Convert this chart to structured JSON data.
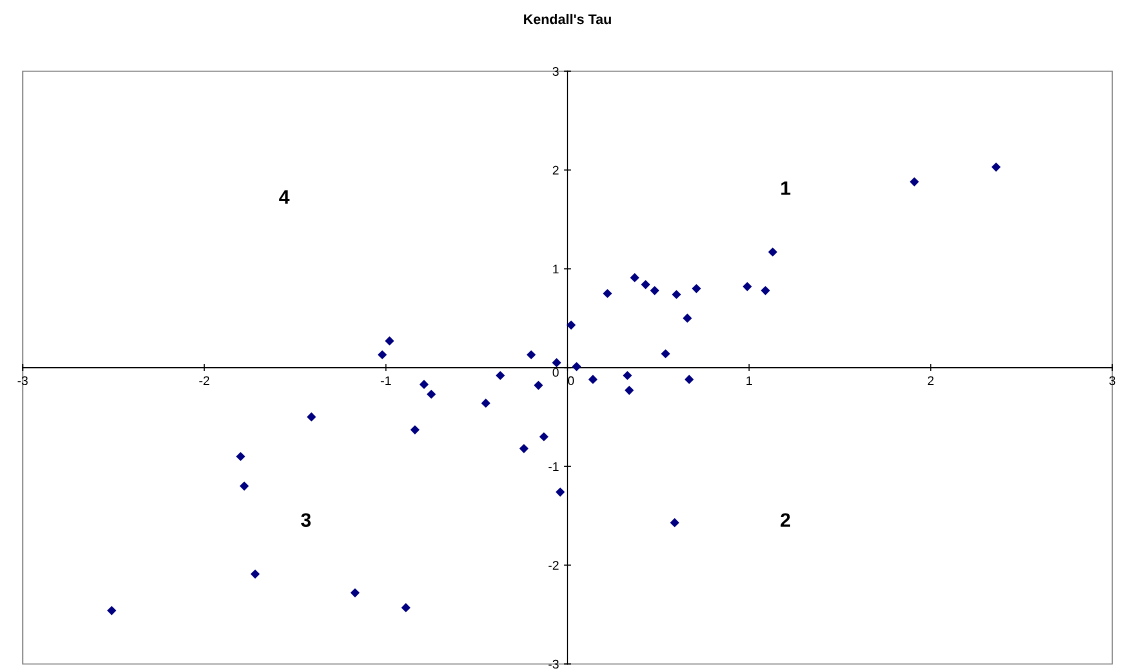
{
  "chart_data": {
    "type": "scatter",
    "title": "Kendall's Tau",
    "marker": "diamond",
    "grid": false,
    "xlim": [
      -3,
      3
    ],
    "ylim": [
      -3,
      3
    ],
    "xticks": [
      -3,
      -2,
      -1,
      0,
      1,
      2,
      3
    ],
    "yticks": [
      -3,
      -2,
      -1,
      0,
      1,
      2,
      3
    ],
    "series": [
      {
        "color": "#000080",
        "x": [
          -2.51,
          -1.8,
          -1.78,
          -1.72,
          -1.41,
          -1.17,
          -1.02,
          -0.98,
          -0.89,
          -0.84,
          -0.79,
          -0.75,
          -0.45,
          -0.37,
          -0.24,
          -0.2,
          -0.16,
          -0.13,
          -0.06,
          -0.04,
          0.02,
          0.05,
          0.14,
          0.22,
          0.33,
          0.34,
          0.37,
          0.43,
          0.48,
          0.54,
          0.59,
          0.6,
          0.66,
          0.67,
          0.71,
          0.99,
          1.09,
          1.13,
          1.91,
          2.36
        ],
        "values": [
          -2.46,
          -0.9,
          -1.2,
          -2.09,
          -0.5,
          -2.28,
          0.13,
          0.27,
          -2.43,
          -0.63,
          -0.17,
          -0.27,
          -0.36,
          -0.08,
          -0.82,
          0.13,
          -0.18,
          -0.7,
          0.05,
          -1.26,
          0.43,
          0.01,
          -0.12,
          0.75,
          -0.08,
          -0.23,
          0.91,
          0.84,
          0.78,
          0.14,
          -1.57,
          0.74,
          0.5,
          -0.12,
          0.8,
          0.82,
          0.78,
          1.17,
          1.88,
          2.03
        ]
      }
    ],
    "annotations": [
      "1",
      "2",
      "3",
      "4"
    ]
  }
}
